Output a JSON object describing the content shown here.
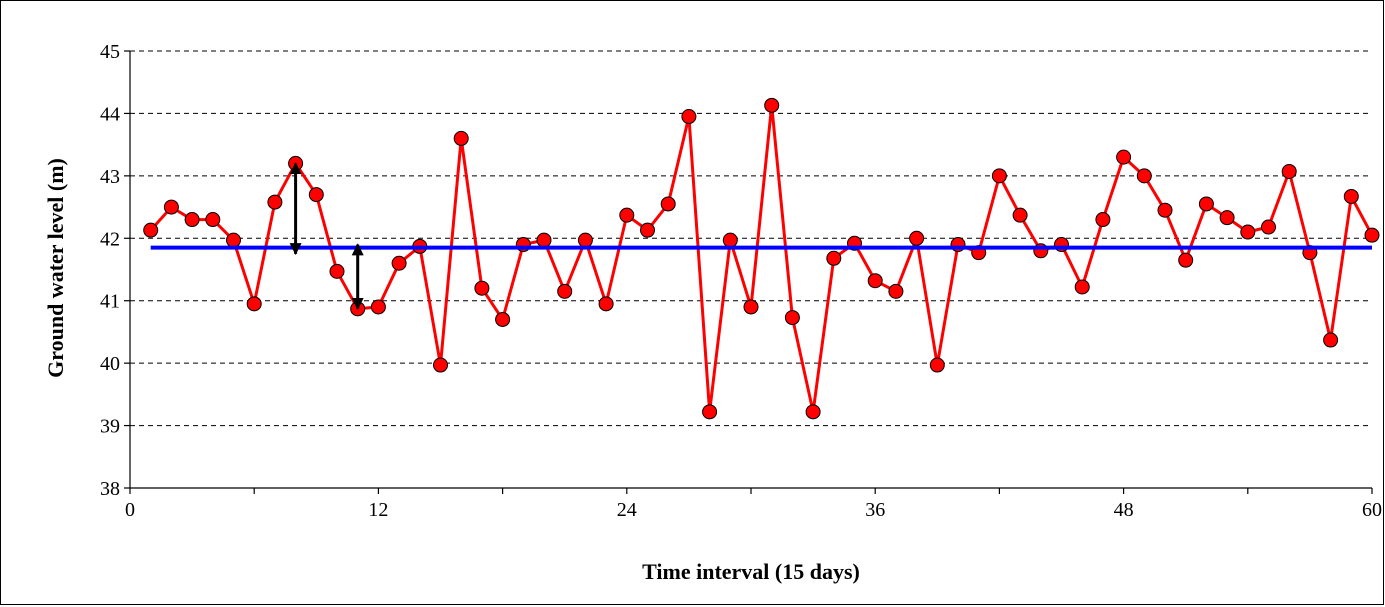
{
  "chart_data": {
    "type": "line",
    "title": "",
    "xlabel": "Time interval (15 days)",
    "ylabel": "Ground water level (m)",
    "xlim": [
      0,
      60
    ],
    "ylim": [
      38,
      45
    ],
    "x_ticks": [
      0,
      12,
      24,
      36,
      48,
      60
    ],
    "y_ticks": [
      38,
      39,
      40,
      41,
      42,
      43,
      44,
      45
    ],
    "x_minor_step": 6,
    "grid": "horizontal dashed",
    "series": [
      {
        "type": "line",
        "color": "#ff0000",
        "marker": "circle",
        "x": [
          1,
          2,
          3,
          4,
          5,
          6,
          7,
          8,
          9,
          10,
          11,
          12,
          13,
          14,
          15,
          16,
          17,
          18,
          19,
          20,
          21,
          22,
          23,
          24,
          25,
          26,
          27,
          28,
          29,
          30,
          31,
          32,
          33,
          34,
          35,
          36,
          37,
          38,
          39,
          40,
          41,
          42,
          43,
          44,
          45,
          46,
          47,
          48,
          49,
          50,
          51,
          52,
          53,
          54,
          55,
          56,
          57,
          58,
          59,
          60
        ],
        "values": [
          42.13,
          42.5,
          42.3,
          42.3,
          41.97,
          40.95,
          42.58,
          43.2,
          42.7,
          41.47,
          40.87,
          40.9,
          41.6,
          41.87,
          39.97,
          43.6,
          41.2,
          40.7,
          41.9,
          41.97,
          41.15,
          41.97,
          40.95,
          42.37,
          42.13,
          42.55,
          43.95,
          39.22,
          41.97,
          40.9,
          44.13,
          40.73,
          39.22,
          41.68,
          41.92,
          41.32,
          41.15,
          42.0,
          39.97,
          41.9,
          41.77,
          43.0,
          42.37,
          41.8,
          41.9,
          41.22,
          42.3,
          43.3,
          43.0,
          42.45,
          41.65,
          42.55,
          42.33,
          42.1,
          42.18,
          43.07,
          41.77,
          40.37,
          42.67,
          42.05
        ]
      },
      {
        "type": "line",
        "color": "#0000ff",
        "x": [
          1,
          60
        ],
        "values": [
          41.85,
          41.85
        ]
      }
    ],
    "annotations": [
      {
        "type": "double-arrow",
        "x": 8,
        "y_from": 41.75,
        "y_to": 43.2,
        "color": "#000000"
      },
      {
        "type": "double-arrow",
        "x": 11,
        "y_from": 40.87,
        "y_to": 41.9,
        "color": "#000000"
      }
    ]
  }
}
